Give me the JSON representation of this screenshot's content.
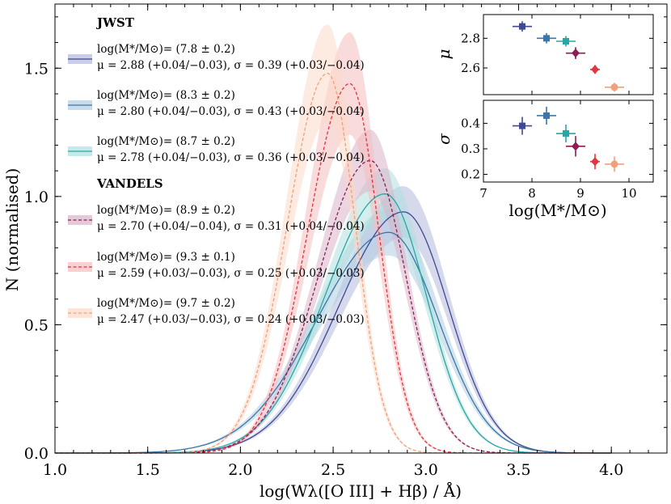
{
  "chart_data": {
    "type": "line",
    "xlabel": "log(Wλ([O III] + Hβ) / Å)",
    "ylabel": "N (normalised)",
    "xlim": [
      1.0,
      4.3
    ],
    "ylim": [
      0.0,
      1.75
    ],
    "xticks": [
      "1.0",
      "1.5",
      "2.0",
      "2.5",
      "3.0",
      "3.5",
      "4.0"
    ],
    "yticks": [
      "0.0",
      "0.5",
      "1.0",
      "1.5"
    ],
    "legend_groups": [
      {
        "heading": "JWST"
      },
      {
        "heading": "VANDELS"
      }
    ],
    "series": [
      {
        "name": "log(M*/M⊙)= (7.8 ± 0.2)",
        "stats": "μ = 2.88 (+0.04/−0.03), σ = 0.39 (+0.03/−0.04)",
        "group": "JWST",
        "mu": 2.88,
        "sigma": 0.39,
        "peak": 0.94,
        "band": 0.1,
        "color": "#3f4a94",
        "band_color": "#b4b8da",
        "style": "solid"
      },
      {
        "name": "log(M*/M⊙)= (8.3 ± 0.2)",
        "stats": "μ = 2.80 (+0.04/−0.03), σ = 0.43 (+0.03/−0.04)",
        "group": "JWST",
        "mu": 2.8,
        "sigma": 0.43,
        "peak": 0.86,
        "band": 0.09,
        "color": "#3a77a8",
        "band_color": "#b0cde2",
        "style": "solid"
      },
      {
        "name": "log(M*/M⊙)= (8.7 ± 0.2)",
        "stats": "μ = 2.78 (+0.04/−0.03), σ = 0.36 (+0.03/−0.04)",
        "group": "JWST",
        "mu": 2.78,
        "sigma": 0.36,
        "peak": 1.01,
        "band": 0.1,
        "color": "#2aa6a6",
        "band_color": "#aee0df",
        "style": "solid"
      },
      {
        "name": "log(M*/M⊙)= (8.9 ± 0.2)",
        "stats": "μ = 2.70 (+0.04/−0.04), σ = 0.31 (+0.04/−0.04)",
        "group": "VANDELS",
        "mu": 2.7,
        "sigma": 0.31,
        "peak": 1.14,
        "band": 0.12,
        "color": "#8e1c55",
        "band_color": "#d9b3c8",
        "style": "dashed"
      },
      {
        "name": "log(M*/M⊙)= (9.3 ± 0.1)",
        "stats": "μ = 2.59 (+0.03/−0.03), σ = 0.25 (+0.03/−0.03)",
        "group": "VANDELS",
        "mu": 2.59,
        "sigma": 0.25,
        "peak": 1.44,
        "band": 0.2,
        "color": "#e3343f",
        "band_color": "#f6bdc0",
        "style": "dashed"
      },
      {
        "name": "log(M*/M⊙)= (9.7 ± 0.2)",
        "stats": "μ = 2.47 (+0.03/−0.03), σ = 0.24 (+0.03/−0.03)",
        "group": "VANDELS",
        "mu": 2.47,
        "sigma": 0.24,
        "peak": 1.48,
        "band": 0.19,
        "color": "#f2a07b",
        "band_color": "#fbd8c8",
        "style": "dashed"
      }
    ],
    "inset": {
      "xlabel": "log(M*/M⊙)",
      "xlim": [
        7.0,
        10.5
      ],
      "xticks": [
        "7",
        "8",
        "9",
        "10"
      ],
      "mu_panel": {
        "ylabel": "μ",
        "ylim": [
          2.42,
          2.96
        ],
        "yticks": [
          "2.6",
          "2.8"
        ]
      },
      "sigma_panel": {
        "ylabel": "σ",
        "ylim": [
          0.17,
          0.49
        ],
        "yticks": [
          "0.2",
          "0.3",
          "0.4"
        ]
      },
      "points": [
        {
          "mass": 7.8,
          "mass_err": 0.2,
          "mu": 2.88,
          "mu_err": 0.035,
          "sigma": 0.39,
          "sigma_err": 0.035,
          "color": "#3f4a94"
        },
        {
          "mass": 8.3,
          "mass_err": 0.2,
          "mu": 2.8,
          "mu_err": 0.035,
          "sigma": 0.43,
          "sigma_err": 0.035,
          "color": "#3a77a8"
        },
        {
          "mass": 8.7,
          "mass_err": 0.2,
          "mu": 2.78,
          "mu_err": 0.035,
          "sigma": 0.36,
          "sigma_err": 0.035,
          "color": "#2aa6a6"
        },
        {
          "mass": 8.9,
          "mass_err": 0.2,
          "mu": 2.7,
          "mu_err": 0.04,
          "sigma": 0.31,
          "sigma_err": 0.04,
          "color": "#8e1c55"
        },
        {
          "mass": 9.3,
          "mass_err": 0.1,
          "mu": 2.59,
          "mu_err": 0.03,
          "sigma": 0.25,
          "sigma_err": 0.03,
          "color": "#e3343f"
        },
        {
          "mass": 9.7,
          "mass_err": 0.2,
          "mu": 2.47,
          "mu_err": 0.03,
          "sigma": 0.24,
          "sigma_err": 0.03,
          "color": "#f2a07b"
        }
      ]
    }
  }
}
